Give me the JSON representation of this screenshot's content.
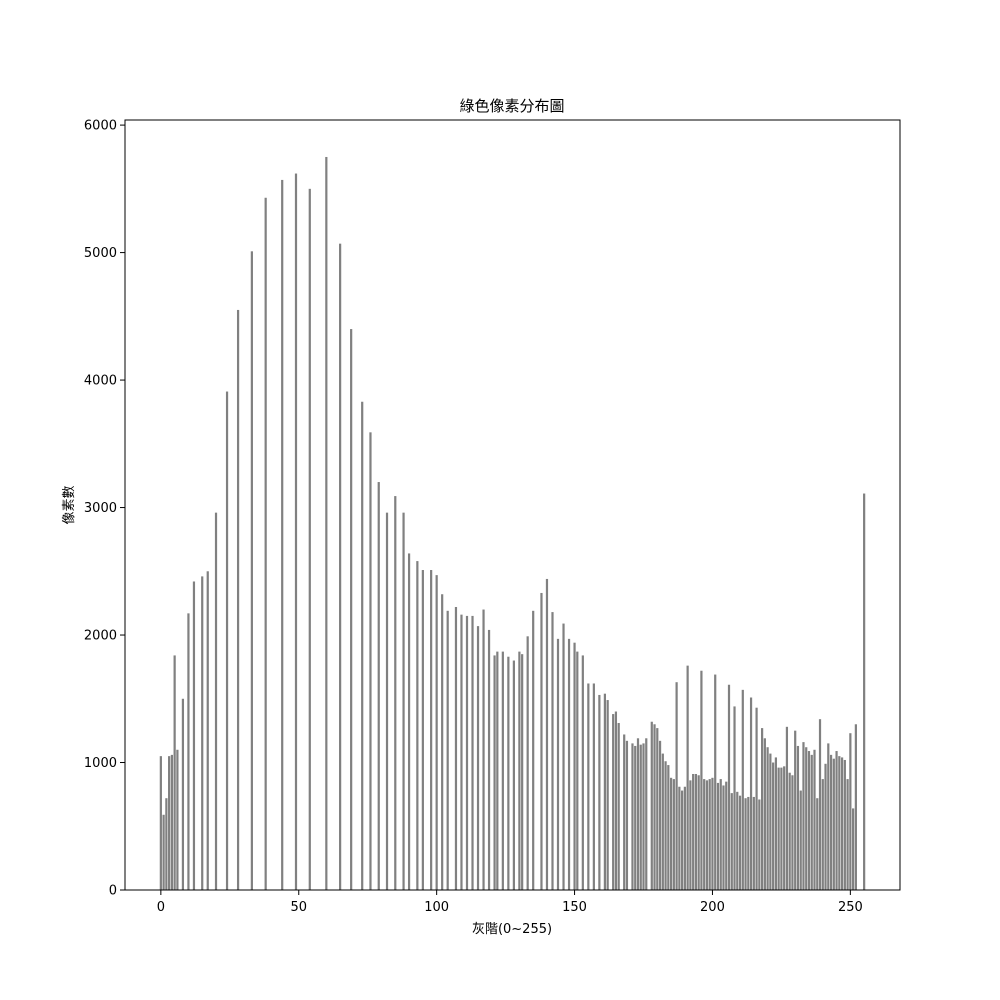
{
  "chart_data": {
    "type": "bar",
    "title": "綠色像素分布圖",
    "xlabel": "灰階(0~255)",
    "ylabel": "像素數",
    "xlim": [
      -13,
      268
    ],
    "ylim": [
      0,
      6040
    ],
    "x_ticks": [
      0,
      50,
      100,
      150,
      200,
      250
    ],
    "y_ticks": [
      0,
      1000,
      2000,
      3000,
      4000,
      5000,
      6000
    ],
    "bar_color": "#808080",
    "grid": false,
    "bars": [
      {
        "x": 0,
        "y": 1050
      },
      {
        "x": 1,
        "y": 590
      },
      {
        "x": 2,
        "y": 720
      },
      {
        "x": 3,
        "y": 1050
      },
      {
        "x": 4,
        "y": 1060
      },
      {
        "x": 5,
        "y": 1840
      },
      {
        "x": 6,
        "y": 1100
      },
      {
        "x": 8,
        "y": 1500
      },
      {
        "x": 10,
        "y": 2170
      },
      {
        "x": 12,
        "y": 2420
      },
      {
        "x": 15,
        "y": 2460
      },
      {
        "x": 17,
        "y": 2500
      },
      {
        "x": 20,
        "y": 2960
      },
      {
        "x": 24,
        "y": 3910
      },
      {
        "x": 28,
        "y": 4550
      },
      {
        "x": 33,
        "y": 5010
      },
      {
        "x": 38,
        "y": 5430
      },
      {
        "x": 44,
        "y": 5570
      },
      {
        "x": 49,
        "y": 5620
      },
      {
        "x": 54,
        "y": 5500
      },
      {
        "x": 60,
        "y": 5750
      },
      {
        "x": 65,
        "y": 5070
      },
      {
        "x": 69,
        "y": 4400
      },
      {
        "x": 73,
        "y": 3830
      },
      {
        "x": 76,
        "y": 3590
      },
      {
        "x": 79,
        "y": 3200
      },
      {
        "x": 82,
        "y": 2960
      },
      {
        "x": 85,
        "y": 3090
      },
      {
        "x": 88,
        "y": 2960
      },
      {
        "x": 90,
        "y": 2640
      },
      {
        "x": 93,
        "y": 2580
      },
      {
        "x": 95,
        "y": 2510
      },
      {
        "x": 98,
        "y": 2510
      },
      {
        "x": 100,
        "y": 2470
      },
      {
        "x": 102,
        "y": 2320
      },
      {
        "x": 104,
        "y": 2190
      },
      {
        "x": 107,
        "y": 2220
      },
      {
        "x": 109,
        "y": 2160
      },
      {
        "x": 111,
        "y": 2150
      },
      {
        "x": 113,
        "y": 2150
      },
      {
        "x": 115,
        "y": 2070
      },
      {
        "x": 117,
        "y": 2200
      },
      {
        "x": 119,
        "y": 2040
      },
      {
        "x": 121,
        "y": 1840
      },
      {
        "x": 122,
        "y": 1870
      },
      {
        "x": 124,
        "y": 1870
      },
      {
        "x": 126,
        "y": 1830
      },
      {
        "x": 128,
        "y": 1800
      },
      {
        "x": 130,
        "y": 1870
      },
      {
        "x": 131,
        "y": 1850
      },
      {
        "x": 133,
        "y": 1990
      },
      {
        "x": 135,
        "y": 2190
      },
      {
        "x": 138,
        "y": 2330
      },
      {
        "x": 140,
        "y": 2440
      },
      {
        "x": 142,
        "y": 2180
      },
      {
        "x": 144,
        "y": 1970
      },
      {
        "x": 146,
        "y": 2090
      },
      {
        "x": 148,
        "y": 1970
      },
      {
        "x": 150,
        "y": 1940
      },
      {
        "x": 151,
        "y": 1870
      },
      {
        "x": 153,
        "y": 1840
      },
      {
        "x": 155,
        "y": 1620
      },
      {
        "x": 157,
        "y": 1620
      },
      {
        "x": 159,
        "y": 1530
      },
      {
        "x": 161,
        "y": 1540
      },
      {
        "x": 162,
        "y": 1490
      },
      {
        "x": 164,
        "y": 1380
      },
      {
        "x": 165,
        "y": 1400
      },
      {
        "x": 166,
        "y": 1310
      },
      {
        "x": 168,
        "y": 1220
      },
      {
        "x": 169,
        "y": 1170
      },
      {
        "x": 171,
        "y": 1150
      },
      {
        "x": 172,
        "y": 1130
      },
      {
        "x": 173,
        "y": 1190
      },
      {
        "x": 174,
        "y": 1140
      },
      {
        "x": 175,
        "y": 1150
      },
      {
        "x": 176,
        "y": 1190
      },
      {
        "x": 178,
        "y": 1320
      },
      {
        "x": 179,
        "y": 1300
      },
      {
        "x": 180,
        "y": 1270
      },
      {
        "x": 181,
        "y": 1170
      },
      {
        "x": 182,
        "y": 1070
      },
      {
        "x": 183,
        "y": 1010
      },
      {
        "x": 184,
        "y": 980
      },
      {
        "x": 185,
        "y": 880
      },
      {
        "x": 186,
        "y": 870
      },
      {
        "x": 187,
        "y": 1630
      },
      {
        "x": 188,
        "y": 810
      },
      {
        "x": 189,
        "y": 780
      },
      {
        "x": 190,
        "y": 810
      },
      {
        "x": 191,
        "y": 1760
      },
      {
        "x": 192,
        "y": 860
      },
      {
        "x": 193,
        "y": 910
      },
      {
        "x": 194,
        "y": 910
      },
      {
        "x": 195,
        "y": 900
      },
      {
        "x": 196,
        "y": 1720
      },
      {
        "x": 197,
        "y": 870
      },
      {
        "x": 198,
        "y": 860
      },
      {
        "x": 199,
        "y": 870
      },
      {
        "x": 200,
        "y": 880
      },
      {
        "x": 201,
        "y": 1690
      },
      {
        "x": 202,
        "y": 840
      },
      {
        "x": 203,
        "y": 870
      },
      {
        "x": 204,
        "y": 820
      },
      {
        "x": 205,
        "y": 850
      },
      {
        "x": 206,
        "y": 1610
      },
      {
        "x": 207,
        "y": 760
      },
      {
        "x": 208,
        "y": 1440
      },
      {
        "x": 209,
        "y": 770
      },
      {
        "x": 210,
        "y": 740
      },
      {
        "x": 211,
        "y": 1570
      },
      {
        "x": 212,
        "y": 720
      },
      {
        "x": 213,
        "y": 730
      },
      {
        "x": 214,
        "y": 1510
      },
      {
        "x": 215,
        "y": 730
      },
      {
        "x": 216,
        "y": 1430
      },
      {
        "x": 217,
        "y": 710
      },
      {
        "x": 218,
        "y": 1270
      },
      {
        "x": 219,
        "y": 1190
      },
      {
        "x": 220,
        "y": 1120
      },
      {
        "x": 221,
        "y": 1070
      },
      {
        "x": 222,
        "y": 1000
      },
      {
        "x": 223,
        "y": 1040
      },
      {
        "x": 224,
        "y": 960
      },
      {
        "x": 225,
        "y": 960
      },
      {
        "x": 226,
        "y": 970
      },
      {
        "x": 227,
        "y": 1280
      },
      {
        "x": 228,
        "y": 920
      },
      {
        "x": 229,
        "y": 900
      },
      {
        "x": 230,
        "y": 1250
      },
      {
        "x": 231,
        "y": 1130
      },
      {
        "x": 232,
        "y": 780
      },
      {
        "x": 233,
        "y": 1160
      },
      {
        "x": 234,
        "y": 1120
      },
      {
        "x": 235,
        "y": 1090
      },
      {
        "x": 236,
        "y": 1060
      },
      {
        "x": 237,
        "y": 1100
      },
      {
        "x": 238,
        "y": 720
      },
      {
        "x": 239,
        "y": 1340
      },
      {
        "x": 240,
        "y": 870
      },
      {
        "x": 241,
        "y": 990
      },
      {
        "x": 242,
        "y": 1150
      },
      {
        "x": 243,
        "y": 1060
      },
      {
        "x": 244,
        "y": 1030
      },
      {
        "x": 245,
        "y": 1090
      },
      {
        "x": 246,
        "y": 1050
      },
      {
        "x": 247,
        "y": 1040
      },
      {
        "x": 248,
        "y": 1020
      },
      {
        "x": 249,
        "y": 870
      },
      {
        "x": 250,
        "y": 1230
      },
      {
        "x": 251,
        "y": 640
      },
      {
        "x": 252,
        "y": 1300
      },
      {
        "x": 255,
        "y": 3110
      }
    ]
  }
}
